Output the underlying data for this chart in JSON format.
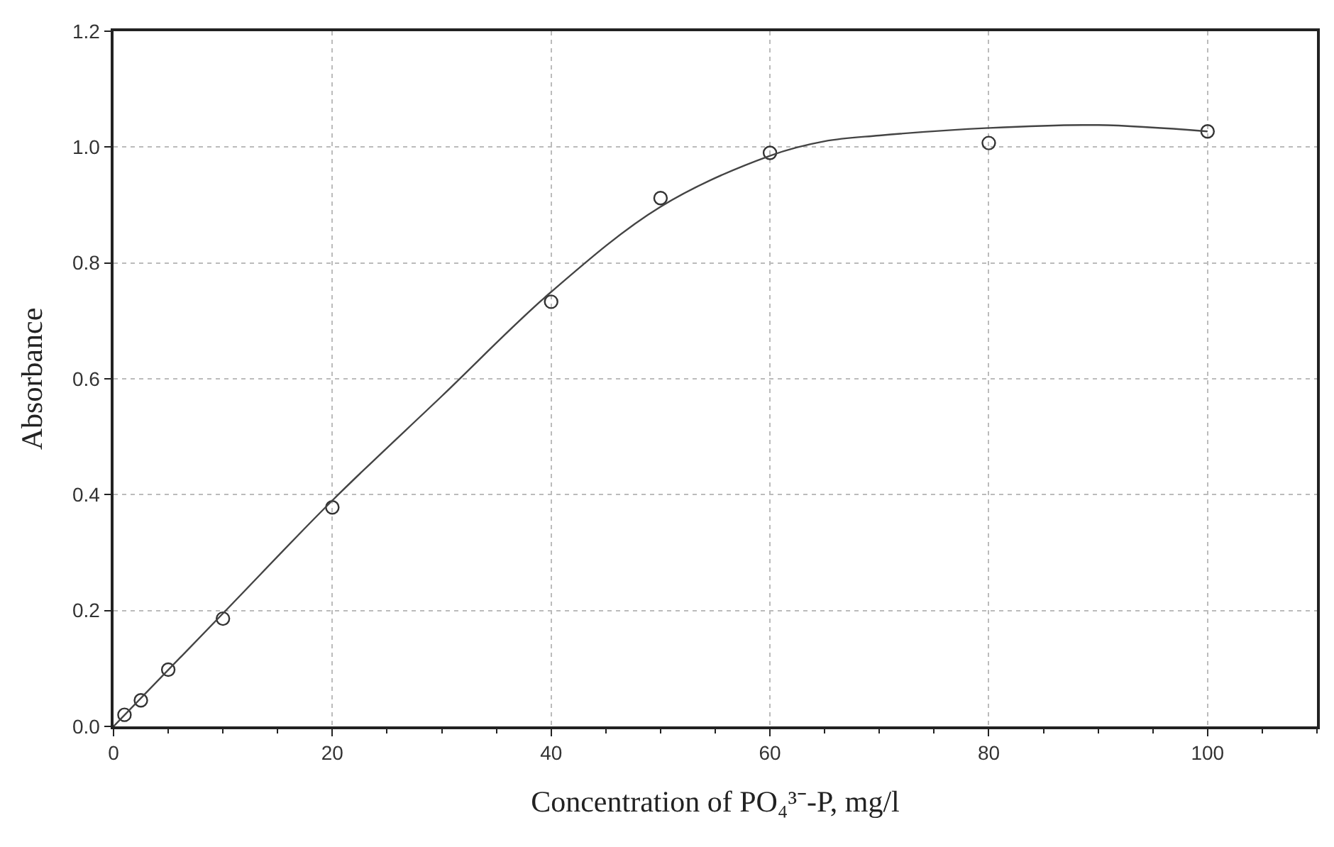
{
  "chart_data": {
    "type": "scatter",
    "xlabel": "Concentration of PO₄³⁻-P, mg/l",
    "ylabel": "Absorbance",
    "xlim": [
      0,
      110
    ],
    "xticks": [
      0,
      20,
      40,
      60,
      80,
      100
    ],
    "ylim": [
      0,
      1.2
    ],
    "yticks": [
      {
        "value": 0,
        "label": "0.0"
      },
      0.2,
      0.4,
      0.6,
      0.8,
      {
        "value": 1,
        "label": "1.0"
      },
      1.2
    ],
    "grid": true,
    "marker": "circle",
    "series": [
      {
        "color": "#333333",
        "x": [
          1,
          2.5,
          5,
          10,
          20,
          40,
          50,
          60,
          80,
          100
        ],
        "values": [
          0.02,
          0.045,
          0.098,
          0.186,
          0.378,
          0.733,
          0.912,
          0.99,
          1.007,
          1.027
        ]
      },
      {
        "type": "line",
        "color": "#444444",
        "marker": "none",
        "line_style": "solid",
        "x": [
          0,
          10,
          20,
          30,
          40,
          50,
          60,
          65,
          70,
          80,
          90,
          100
        ],
        "values": [
          0.0,
          0.195,
          0.39,
          0.57,
          0.75,
          0.897,
          0.985,
          1.01,
          1.02,
          1.033,
          1.038,
          1.027
        ]
      }
    ]
  }
}
